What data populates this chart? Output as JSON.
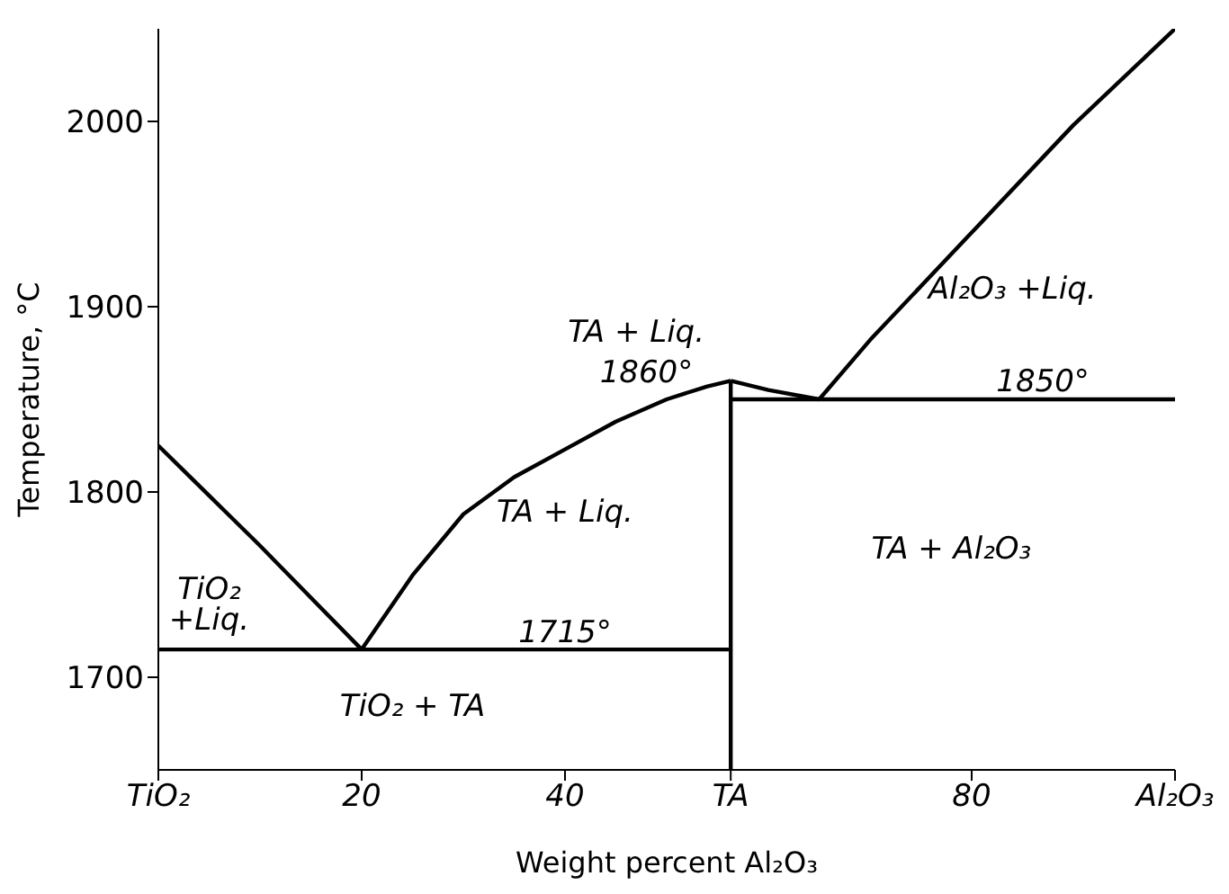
{
  "chart_data": {
    "type": "line",
    "xlabel": "Weight percent Al₂O₃",
    "ylabel": "Temperature, °C",
    "xlim": [
      0,
      100
    ],
    "xticks": [
      {
        "value": 0,
        "label": "TiO₂"
      },
      20,
      40,
      {
        "value": 56.3,
        "label": "TA"
      },
      80,
      {
        "value": 100,
        "label": "Al₂O₃"
      }
    ],
    "ylim": [
      1650,
      2050
    ],
    "yticks": [
      1700,
      1800,
      1900,
      2000
    ],
    "grid": false,
    "legend": false,
    "marker": "none",
    "line_style": "solid",
    "series": [
      {
        "color": "#000000",
        "x": [
          0,
          5,
          10,
          15,
          20
        ],
        "values": [
          1825,
          1798,
          1771,
          1743,
          1715
        ]
      },
      {
        "color": "#000000",
        "x": [
          20,
          25,
          30,
          35,
          40,
          45,
          50,
          54,
          56.3
        ],
        "values": [
          1715,
          1755,
          1788,
          1808,
          1823,
          1838,
          1850,
          1857,
          1860
        ]
      },
      {
        "color": "#000000",
        "x": [
          56.3,
          60,
          65
        ],
        "values": [
          1860,
          1855,
          1850
        ]
      },
      {
        "color": "#000000",
        "x": [
          65,
          70,
          80,
          90,
          100
        ],
        "values": [
          1850,
          1882,
          1940,
          1998,
          2050
        ]
      },
      {
        "color": "#000000",
        "x": [
          0,
          56.3
        ],
        "values": [
          1715,
          1715
        ]
      },
      {
        "color": "#000000",
        "x": [
          56.3,
          100
        ],
        "values": [
          1850,
          1850
        ]
      },
      {
        "color": "#000000",
        "x": [
          56.3,
          56.3
        ],
        "values": [
          1650,
          1860
        ]
      }
    ],
    "annotations": [
      "TiO₂ +Liq.",
      "TA + Liq.",
      "TA + Liq.",
      "1860°",
      "1715°",
      "1850°",
      "Al₂O₃ +Liq.",
      "TiO₂ + TA",
      "TA + Al₂O₃"
    ]
  }
}
